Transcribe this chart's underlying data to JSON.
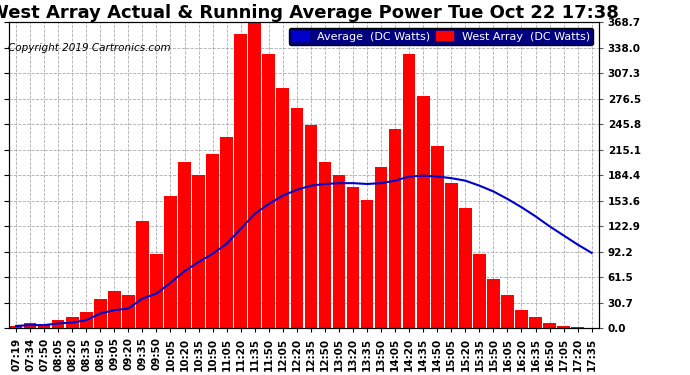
{
  "title": "West Array Actual & Running Average Power Tue Oct 22 17:38",
  "copyright": "Copyright 2019 Cartronics.com",
  "legend_avg": "Average  (DC Watts)",
  "legend_west": "West Array  (DC Watts)",
  "yticks": [
    0.0,
    30.7,
    61.5,
    92.2,
    122.9,
    153.6,
    184.4,
    215.1,
    245.8,
    276.5,
    307.3,
    338.0,
    368.7
  ],
  "ylim": [
    0.0,
    368.7
  ],
  "xtick_labels": [
    "07:19",
    "07:34",
    "07:50",
    "08:05",
    "08:20",
    "08:35",
    "08:50",
    "09:05",
    "09:20",
    "09:35",
    "09:50",
    "10:05",
    "10:20",
    "10:35",
    "10:50",
    "11:05",
    "11:20",
    "11:35",
    "11:50",
    "12:05",
    "12:20",
    "12:35",
    "12:50",
    "13:05",
    "13:20",
    "13:35",
    "13:50",
    "14:05",
    "14:20",
    "14:35",
    "14:50",
    "15:05",
    "15:20",
    "15:35",
    "15:50",
    "16:05",
    "16:20",
    "16:35",
    "16:50",
    "17:05",
    "17:20",
    "17:35"
  ],
  "west_values": [
    3,
    6,
    4,
    10,
    14,
    20,
    35,
    45,
    40,
    130,
    90,
    160,
    200,
    185,
    210,
    230,
    355,
    370,
    330,
    290,
    265,
    245,
    200,
    185,
    170,
    155,
    195,
    240,
    330,
    280,
    220,
    175,
    145,
    90,
    60,
    40,
    22,
    14,
    7,
    3,
    2,
    1
  ],
  "avg_values": [
    3,
    4,
    4,
    6,
    7,
    10,
    18,
    22,
    24,
    36,
    42,
    55,
    69,
    80,
    90,
    102,
    120,
    138,
    150,
    160,
    167,
    172,
    174,
    175,
    175,
    174,
    175,
    178,
    183,
    184,
    183,
    181,
    178,
    172,
    165,
    156,
    146,
    135,
    123,
    112,
    101,
    91
  ],
  "bg_color": "#ffffff",
  "grid_color": "#999999",
  "bar_color": "#ff0000",
  "avg_line_color": "#0000cc",
  "title_fontsize": 13,
  "tick_fontsize": 7.5,
  "copyright_fontsize": 7.5,
  "legend_fontsize": 8,
  "legend_bg": "#000080",
  "legend_fg": "#ffffff"
}
